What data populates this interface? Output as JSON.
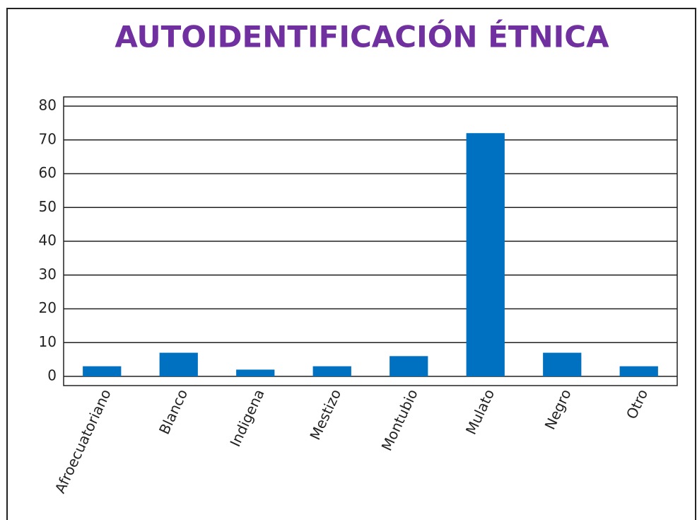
{
  "chart_data": {
    "type": "bar",
    "title": "AUTOIDENTIFICACIÓN ÉTNICA",
    "categories": [
      "Afroecuatoriano",
      "Blanco",
      "Indigena",
      "Mestizo",
      "Montubio",
      "Mulato",
      "Negro",
      "Otro"
    ],
    "values": [
      3,
      7,
      2,
      3,
      6,
      72,
      7,
      3
    ],
    "color": "#0070c0",
    "ylim": [
      0,
      80
    ],
    "yticks": [
      0,
      10,
      20,
      30,
      40,
      50,
      60,
      70,
      80
    ],
    "grid": true
  }
}
